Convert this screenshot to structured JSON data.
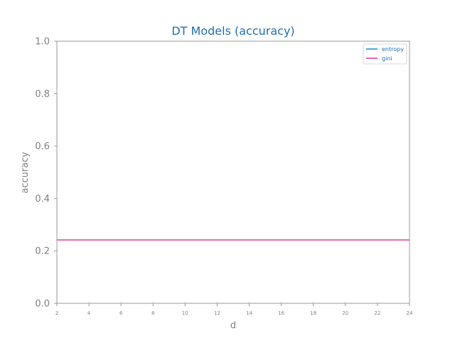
{
  "chart_data": {
    "type": "line",
    "title": "DT Models (accuracy)",
    "xlabel": "d",
    "ylabel": "accuracy",
    "x": [
      2,
      4,
      6,
      8,
      10,
      12,
      14,
      16,
      18,
      20,
      22,
      24
    ],
    "xlim": [
      2,
      24
    ],
    "ylim": [
      0.0,
      1.0
    ],
    "xticks": [
      "2",
      "4",
      "6",
      "8",
      "10",
      "12",
      "14",
      "16",
      "18",
      "20",
      "22",
      "24"
    ],
    "yticks": [
      "0.0",
      "0.2",
      "0.4",
      "0.6",
      "0.8",
      "1.0"
    ],
    "grid": false,
    "legend_position": "top-right",
    "series": [
      {
        "name": "entropy",
        "color": "#1f8fcf",
        "values": [
          0.242,
          0.242,
          0.242,
          0.242,
          0.242,
          0.242,
          0.242,
          0.242,
          0.242,
          0.242,
          0.242,
          0.242
        ]
      },
      {
        "name": "gini",
        "color": "#e0409a",
        "values": [
          0.242,
          0.242,
          0.242,
          0.242,
          0.242,
          0.242,
          0.242,
          0.242,
          0.242,
          0.242,
          0.242,
          0.242
        ]
      }
    ],
    "colors": {
      "title": "#1f6fb4",
      "axes": "#999999",
      "text": "#808080"
    }
  }
}
